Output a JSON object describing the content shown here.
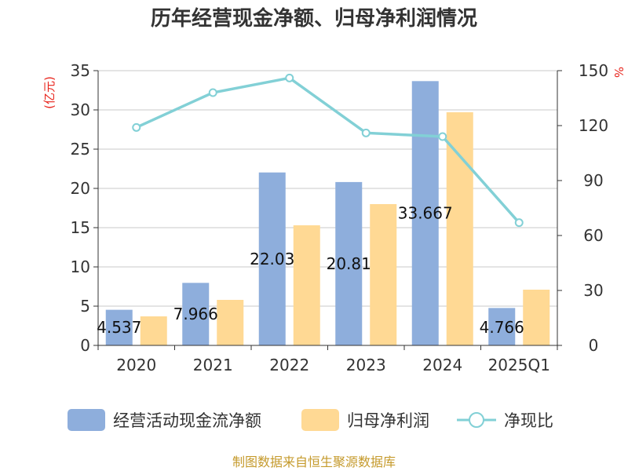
{
  "chart_data": {
    "type": "bar",
    "title": "历年经营现金净额、归母净利润情况",
    "left_unit": "(亿元)",
    "right_unit": "%",
    "categories": [
      "2020",
      "2021",
      "2022",
      "2023",
      "2024",
      "2025Q1"
    ],
    "left_ylim": [
      0,
      35
    ],
    "left_ticks": [
      "0",
      "5",
      "10",
      "15",
      "20",
      "25",
      "30",
      "35"
    ],
    "right_ylim": [
      0,
      150
    ],
    "right_ticks": [
      "0",
      "30",
      "60",
      "90",
      "120",
      "150"
    ],
    "grid": true,
    "legend_position": "bottom",
    "series": [
      {
        "name": "经营活动现金流净额",
        "type": "bar",
        "axis": "left",
        "color": "#8eaedc",
        "values": [
          4.537,
          7.966,
          22.03,
          20.81,
          33.667,
          4.766
        ],
        "labels": [
          "4.537",
          "7.966",
          "22.03",
          "20.81",
          "33.667",
          "4.766"
        ]
      },
      {
        "name": "归母净利润",
        "type": "bar",
        "axis": "left",
        "color": "#ffd994",
        "values": [
          3.7,
          5.8,
          15.3,
          18.0,
          29.7,
          7.1
        ]
      },
      {
        "name": "净现比",
        "type": "line",
        "axis": "right",
        "color": "#82d0d6",
        "values": [
          119,
          138,
          146,
          116,
          114,
          67
        ]
      }
    ]
  },
  "source": "制图数据来自恒生聚源数据库"
}
